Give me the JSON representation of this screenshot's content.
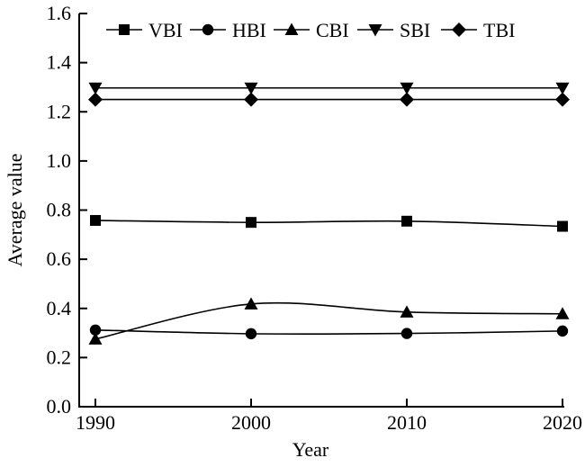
{
  "figure": {
    "background": "#ffffff",
    "line_color": "#000000",
    "text_color": "#000000"
  },
  "chart_data": {
    "type": "line",
    "title": "",
    "xlabel": "Year",
    "ylabel": "Average value",
    "x": [
      1990,
      2000,
      2010,
      2020
    ],
    "xtick_labels": [
      "1990",
      "2000",
      "2010",
      "2020"
    ],
    "ytick_labels": [
      "0.0",
      "0.2",
      "0.4",
      "0.6",
      "0.8",
      "1.0",
      "1.2",
      "1.4",
      "1.6"
    ],
    "ylim": [
      0,
      1.6
    ],
    "ytick_step": 0.2,
    "grid": false,
    "legend_position": "top-inside-horizontal",
    "marker_color": "#000000",
    "series": [
      {
        "name": "VBI",
        "marker": "square",
        "values": [
          0.758,
          0.75,
          0.755,
          0.734
        ]
      },
      {
        "name": "HBI",
        "marker": "circle",
        "values": [
          0.312,
          0.297,
          0.298,
          0.308
        ]
      },
      {
        "name": "CBI",
        "marker": "triangle-up",
        "values": [
          0.275,
          0.418,
          0.385,
          0.378
        ]
      },
      {
        "name": "SBI",
        "marker": "triangle-down",
        "values": [
          1.297,
          1.297,
          1.297,
          1.297
        ]
      },
      {
        "name": "TBI",
        "marker": "diamond",
        "values": [
          1.25,
          1.25,
          1.25,
          1.25
        ]
      }
    ]
  }
}
